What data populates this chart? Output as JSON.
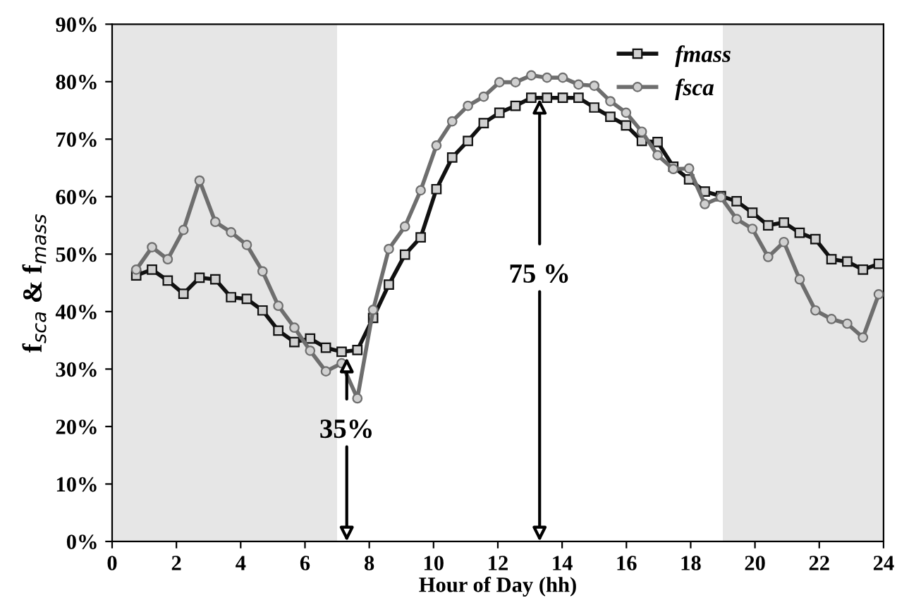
{
  "chart_data": {
    "type": "line",
    "xlabel": "Hour of Day (hh)",
    "ylabel": "f$_{sca}$ & f$_{mass}$",
    "x": [
      0.75,
      1.24,
      1.73,
      2.22,
      2.72,
      3.21,
      3.7,
      4.19,
      4.68,
      5.17,
      5.67,
      6.16,
      6.65,
      7.14,
      7.63,
      8.12,
      8.61,
      9.11,
      9.6,
      10.09,
      10.58,
      11.07,
      11.56,
      12.05,
      12.55,
      13.04,
      13.53,
      14.02,
      14.51,
      15.0,
      15.5,
      15.99,
      16.48,
      16.97,
      17.46,
      17.95,
      18.44,
      18.94,
      19.43,
      19.92,
      20.41,
      20.9,
      21.39,
      21.88,
      22.38,
      22.87,
      23.36,
      23.85
    ],
    "series": [
      {
        "name": "fmass",
        "color": "#111111",
        "marker": "square",
        "values": [
          46.3,
          47.3,
          45.4,
          43.1,
          45.9,
          45.6,
          42.5,
          42.2,
          40.2,
          36.7,
          34.7,
          35.3,
          33.7,
          33.0,
          33.3,
          38.9,
          44.7,
          49.9,
          52.9,
          61.3,
          66.8,
          69.7,
          72.8,
          74.6,
          75.8,
          77.2,
          77.2,
          77.2,
          77.2,
          75.5,
          73.9,
          72.4,
          69.7,
          69.5,
          65.2,
          63.0,
          60.9,
          60.1,
          59.2,
          57.2,
          55.0,
          55.5,
          53.7,
          52.6,
          49.1,
          48.7,
          47.3,
          48.3
        ]
      },
      {
        "name": "fsca",
        "color": "#6e6e6e",
        "marker": "circle",
        "values": [
          47.3,
          51.2,
          49.1,
          54.2,
          62.8,
          55.6,
          53.8,
          51.6,
          47.0,
          41.0,
          37.2,
          33.2,
          29.6,
          31.0,
          24.9,
          40.3,
          50.9,
          54.8,
          61.1,
          68.9,
          73.1,
          75.8,
          77.4,
          79.9,
          79.9,
          81.1,
          80.7,
          80.7,
          79.5,
          79.3,
          76.6,
          74.6,
          71.3,
          67.2,
          64.8,
          64.9,
          58.7,
          59.9,
          56.1,
          54.4,
          49.5,
          52.1,
          45.6,
          40.2,
          38.7,
          37.9,
          35.5,
          43.0
        ]
      }
    ],
    "xlim": [
      0,
      24
    ],
    "xticks": [
      0,
      2,
      4,
      6,
      8,
      10,
      12,
      14,
      16,
      18,
      20,
      22,
      24
    ],
    "ylim": [
      0,
      90
    ],
    "yticks": [
      {
        "value": 0,
        "label": "0%"
      },
      {
        "value": 10,
        "label": "10%"
      },
      {
        "value": 20,
        "label": "20%"
      },
      {
        "value": 30,
        "label": "30%"
      },
      {
        "value": 40,
        "label": "40%"
      },
      {
        "value": 50,
        "label": "50%"
      },
      {
        "value": 60,
        "label": "60%"
      },
      {
        "value": 70,
        "label": "70%"
      },
      {
        "value": 80,
        "label": "80%"
      },
      {
        "value": 90,
        "label": "90%"
      }
    ],
    "bands": [
      {
        "axis": "x",
        "from": 0,
        "to": 7,
        "color": "#e6e6e6"
      },
      {
        "axis": "x",
        "from": 19,
        "to": 24,
        "color": "#e6e6e6"
      }
    ],
    "annotations": [
      {
        "text": "35%",
        "x": 7.3,
        "y": 32
      },
      {
        "text": "75 %",
        "x": 13.3,
        "y": 77
      }
    ],
    "legend": "top right",
    "grid": false,
    "line_style": "solid"
  }
}
